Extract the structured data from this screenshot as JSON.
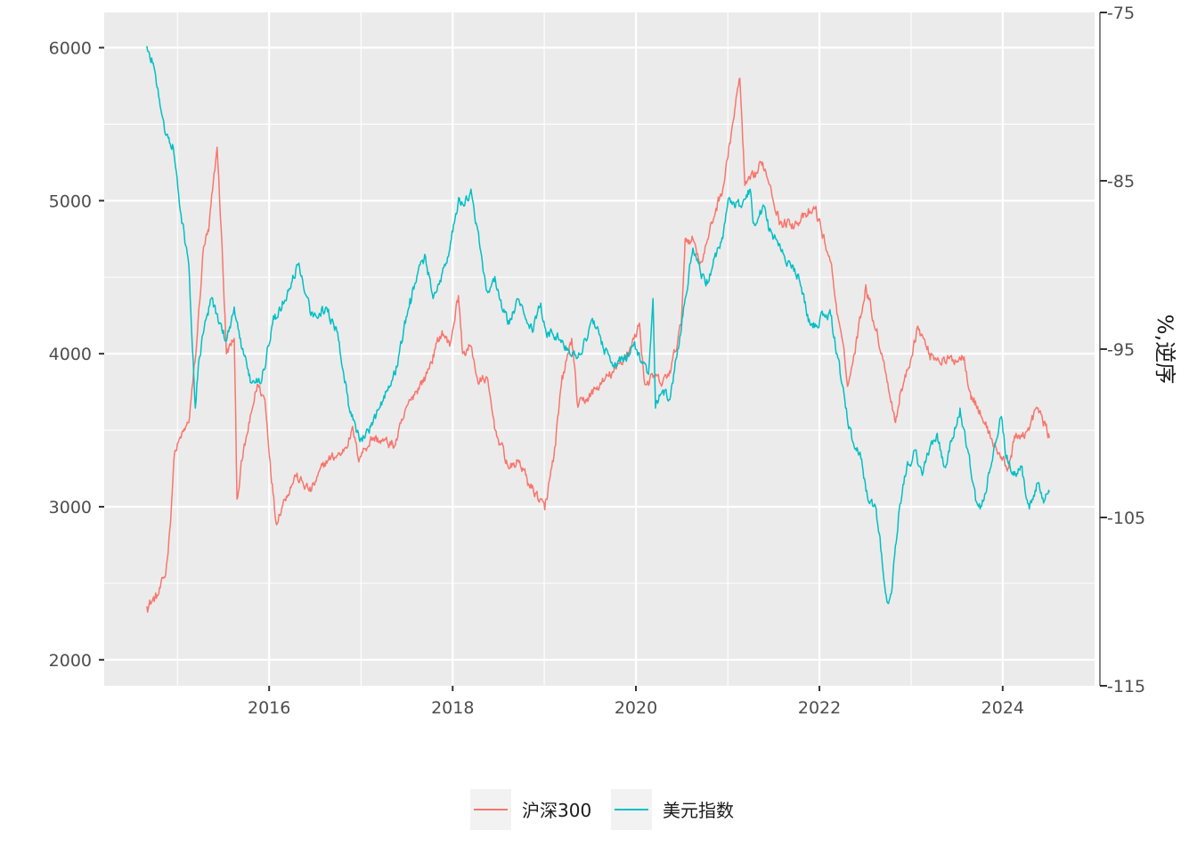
{
  "chart_data": {
    "type": "line",
    "title": "",
    "xlabel": "",
    "ylabel": "",
    "y2label": "%,逆序",
    "x_axis": {
      "type": "date",
      "range": [
        "2014-03-15",
        "2025-01-01"
      ],
      "ticks": [
        "2016",
        "2018",
        "2020",
        "2022",
        "2024"
      ]
    },
    "y_axis_left": {
      "range": [
        1830,
        6230
      ],
      "ticks": [
        2000,
        3000,
        4000,
        5000,
        6000
      ]
    },
    "y_axis_right": {
      "range": [
        -115,
        -75
      ],
      "reversed": true,
      "ticks": [
        -75,
        -85,
        -95,
        -105,
        -115
      ]
    },
    "grid": true,
    "legend": {
      "placement": "bottom"
    },
    "series": [
      {
        "name": "沪深300",
        "axis": "left",
        "color": "#F8766D",
        "points": [
          [
            "2014-09-01",
            2350
          ],
          [
            "2014-10-15",
            2420
          ],
          [
            "2014-11-15",
            2560
          ],
          [
            "2014-12-01",
            2850
          ],
          [
            "2014-12-20",
            3350
          ],
          [
            "2015-01-15",
            3450
          ],
          [
            "2015-02-15",
            3550
          ],
          [
            "2015-03-15",
            4000
          ],
          [
            "2015-04-15",
            4700
          ],
          [
            "2015-05-05",
            4800
          ],
          [
            "2015-06-08",
            5350
          ],
          [
            "2015-06-30",
            4600
          ],
          [
            "2015-07-15",
            4000
          ],
          [
            "2015-08-15",
            4100
          ],
          [
            "2015-08-26",
            3050
          ],
          [
            "2015-09-15",
            3300
          ],
          [
            "2015-10-15",
            3550
          ],
          [
            "2015-11-15",
            3800
          ],
          [
            "2015-12-15",
            3700
          ],
          [
            "2016-01-05",
            3300
          ],
          [
            "2016-01-28",
            2900
          ],
          [
            "2016-03-01",
            3050
          ],
          [
            "2016-04-15",
            3200
          ],
          [
            "2016-06-15",
            3100
          ],
          [
            "2016-08-15",
            3300
          ],
          [
            "2016-10-15",
            3350
          ],
          [
            "2016-12-01",
            3500
          ],
          [
            "2016-12-20",
            3320
          ],
          [
            "2017-02-15",
            3450
          ],
          [
            "2017-05-15",
            3400
          ],
          [
            "2017-07-15",
            3700
          ],
          [
            "2017-09-15",
            3850
          ],
          [
            "2017-11-20",
            4150
          ],
          [
            "2017-12-20",
            4050
          ],
          [
            "2018-01-24",
            4380
          ],
          [
            "2018-02-10",
            4000
          ],
          [
            "2018-03-15",
            4050
          ],
          [
            "2018-04-15",
            3800
          ],
          [
            "2018-05-15",
            3850
          ],
          [
            "2018-06-20",
            3500
          ],
          [
            "2018-08-15",
            3250
          ],
          [
            "2018-09-25",
            3300
          ],
          [
            "2018-10-30",
            3150
          ],
          [
            "2018-12-15",
            3050
          ],
          [
            "2019-01-03",
            2980
          ],
          [
            "2019-02-15",
            3400
          ],
          [
            "2019-03-10",
            3800
          ],
          [
            "2019-04-20",
            4100
          ],
          [
            "2019-05-15",
            3650
          ],
          [
            "2019-06-15",
            3700
          ],
          [
            "2019-08-15",
            3800
          ],
          [
            "2019-10-15",
            3900
          ],
          [
            "2019-12-15",
            4050
          ],
          [
            "2020-01-15",
            4200
          ],
          [
            "2020-02-05",
            3800
          ],
          [
            "2020-03-15",
            3850
          ],
          [
            "2020-04-15",
            3800
          ],
          [
            "2020-05-20",
            3900
          ],
          [
            "2020-06-30",
            4200
          ],
          [
            "2020-07-15",
            4750
          ],
          [
            "2020-08-15",
            4750
          ],
          [
            "2020-09-15",
            4600
          ],
          [
            "2020-10-15",
            4750
          ],
          [
            "2020-11-15",
            4950
          ],
          [
            "2020-12-15",
            5100
          ],
          [
            "2021-01-20",
            5500
          ],
          [
            "2021-02-18",
            5800
          ],
          [
            "2021-03-10",
            5100
          ],
          [
            "2021-04-15",
            5150
          ],
          [
            "2021-05-20",
            5250
          ],
          [
            "2021-06-20",
            5100
          ],
          [
            "2021-07-28",
            4850
          ],
          [
            "2021-09-15",
            4850
          ],
          [
            "2021-11-15",
            4900
          ],
          [
            "2021-12-15",
            4950
          ],
          [
            "2022-01-10",
            4800
          ],
          [
            "2022-02-15",
            4600
          ],
          [
            "2022-03-15",
            4250
          ],
          [
            "2022-04-26",
            3800
          ],
          [
            "2022-05-20",
            4000
          ],
          [
            "2022-07-05",
            4450
          ],
          [
            "2022-08-15",
            4150
          ],
          [
            "2022-09-15",
            3950
          ],
          [
            "2022-10-31",
            3550
          ],
          [
            "2022-11-20",
            3750
          ],
          [
            "2022-12-20",
            3900
          ],
          [
            "2023-01-28",
            4180
          ],
          [
            "2023-03-15",
            4000
          ],
          [
            "2023-05-15",
            3950
          ],
          [
            "2023-07-31",
            3980
          ],
          [
            "2023-08-25",
            3750
          ],
          [
            "2023-10-20",
            3550
          ],
          [
            "2023-12-15",
            3350
          ],
          [
            "2024-01-22",
            3250
          ],
          [
            "2024-02-20",
            3450
          ],
          [
            "2024-04-15",
            3500
          ],
          [
            "2024-05-15",
            3650
          ],
          [
            "2024-06-20",
            3530
          ],
          [
            "2024-07-05",
            3450
          ]
        ]
      },
      {
        "name": "美元指数",
        "axis": "right",
        "color": "#00BFC4",
        "points": [
          [
            "2014-09-01",
            -77.0
          ],
          [
            "2014-09-20",
            -77.7
          ],
          [
            "2014-10-15",
            -79.5
          ],
          [
            "2014-11-10",
            -82.0
          ],
          [
            "2014-12-15",
            -83.0
          ],
          [
            "2015-01-15",
            -87.0
          ],
          [
            "2015-02-15",
            -90.0
          ],
          [
            "2015-03-13",
            -98.5
          ],
          [
            "2015-03-25",
            -96.0
          ],
          [
            "2015-04-15",
            -94.0
          ],
          [
            "2015-05-15",
            -92.0
          ],
          [
            "2015-06-15",
            -93.5
          ],
          [
            "2015-07-15",
            -94.5
          ],
          [
            "2015-08-15",
            -92.5
          ],
          [
            "2015-09-15",
            -95.0
          ],
          [
            "2015-10-15",
            -96.5
          ],
          [
            "2015-11-30",
            -97.0
          ],
          [
            "2016-01-15",
            -93.5
          ],
          [
            "2016-03-15",
            -91.5
          ],
          [
            "2016-04-25",
            -90.0
          ],
          [
            "2016-06-15",
            -93.0
          ],
          [
            "2016-08-15",
            -92.5
          ],
          [
            "2016-09-30",
            -94.0
          ],
          [
            "2016-11-15",
            -98.5
          ],
          [
            "2016-12-28",
            -100.5
          ],
          [
            "2017-02-15",
            -99.5
          ],
          [
            "2017-03-15",
            -98.5
          ],
          [
            "2017-05-15",
            -96.5
          ],
          [
            "2017-06-15",
            -94.5
          ],
          [
            "2017-07-15",
            -92.0
          ],
          [
            "2017-08-15",
            -90.5
          ],
          [
            "2017-09-15",
            -89.5
          ],
          [
            "2017-10-15",
            -92.0
          ],
          [
            "2017-11-15",
            -91.0
          ],
          [
            "2017-12-15",
            -89.5
          ],
          [
            "2018-01-25",
            -86.0
          ],
          [
            "2018-02-15",
            -86.5
          ],
          [
            "2018-03-15",
            -85.5
          ],
          [
            "2018-04-20",
            -89.0
          ],
          [
            "2018-05-15",
            -91.5
          ],
          [
            "2018-06-15",
            -91.0
          ],
          [
            "2018-07-15",
            -92.5
          ],
          [
            "2018-08-15",
            -93.5
          ],
          [
            "2018-09-15",
            -92.0
          ],
          [
            "2018-10-15",
            -93.0
          ],
          [
            "2018-11-15",
            -94.0
          ],
          [
            "2018-12-15",
            -92.5
          ],
          [
            "2019-01-15",
            -94.0
          ],
          [
            "2019-03-15",
            -94.5
          ],
          [
            "2019-05-15",
            -95.5
          ],
          [
            "2019-07-15",
            -93.5
          ],
          [
            "2019-09-30",
            -96.0
          ],
          [
            "2019-11-15",
            -95.5
          ],
          [
            "2019-12-30",
            -95.0
          ],
          [
            "2020-02-20",
            -96.5
          ],
          [
            "2020-03-09",
            -92.0
          ],
          [
            "2020-03-19",
            -98.5
          ],
          [
            "2020-04-15",
            -97.5
          ],
          [
            "2020-05-15",
            -98.0
          ],
          [
            "2020-06-15",
            -95.0
          ],
          [
            "2020-07-15",
            -92.0
          ],
          [
            "2020-08-15",
            -89.0
          ],
          [
            "2020-09-15",
            -90.5
          ],
          [
            "2020-10-15",
            -91.0
          ],
          [
            "2020-11-15",
            -89.5
          ],
          [
            "2020-12-15",
            -88.0
          ],
          [
            "2021-01-06",
            -86.0
          ],
          [
            "2021-02-15",
            -86.5
          ],
          [
            "2021-03-31",
            -85.5
          ],
          [
            "2021-04-15",
            -87.5
          ],
          [
            "2021-05-25",
            -86.5
          ],
          [
            "2021-06-15",
            -88.0
          ],
          [
            "2021-07-15",
            -88.5
          ],
          [
            "2021-08-15",
            -89.5
          ],
          [
            "2021-09-15",
            -90.0
          ],
          [
            "2021-10-15",
            -91.0
          ],
          [
            "2021-11-24",
            -93.5
          ],
          [
            "2021-12-15",
            -93.5
          ],
          [
            "2022-01-15",
            -93.0
          ],
          [
            "2022-02-15",
            -93.0
          ],
          [
            "2022-03-15",
            -95.5
          ],
          [
            "2022-04-15",
            -98.5
          ],
          [
            "2022-05-13",
            -100.5
          ],
          [
            "2022-06-15",
            -101.5
          ],
          [
            "2022-07-14",
            -104.0
          ],
          [
            "2022-08-15",
            -104.5
          ],
          [
            "2022-09-27",
            -110.0
          ],
          [
            "2022-10-15",
            -109.5
          ],
          [
            "2022-11-15",
            -104.5
          ],
          [
            "2022-12-15",
            -102.0
          ],
          [
            "2023-01-15",
            -101.0
          ],
          [
            "2023-02-15",
            -102.5
          ],
          [
            "2023-03-15",
            -101.0
          ],
          [
            "2023-04-15",
            -100.0
          ],
          [
            "2023-05-15",
            -102.0
          ],
          [
            "2023-07-15",
            -98.5
          ],
          [
            "2023-08-15",
            -101.0
          ],
          [
            "2023-09-15",
            -104.0
          ],
          [
            "2023-10-03",
            -104.5
          ],
          [
            "2023-11-15",
            -102.0
          ],
          [
            "2023-12-27",
            -99.0
          ],
          [
            "2024-01-15",
            -101.5
          ],
          [
            "2024-02-15",
            -102.5
          ],
          [
            "2024-03-15",
            -102.0
          ],
          [
            "2024-04-16",
            -104.5
          ],
          [
            "2024-05-15",
            -103.0
          ],
          [
            "2024-06-15",
            -104.0
          ],
          [
            "2024-07-05",
            -103.5
          ]
        ]
      }
    ]
  }
}
